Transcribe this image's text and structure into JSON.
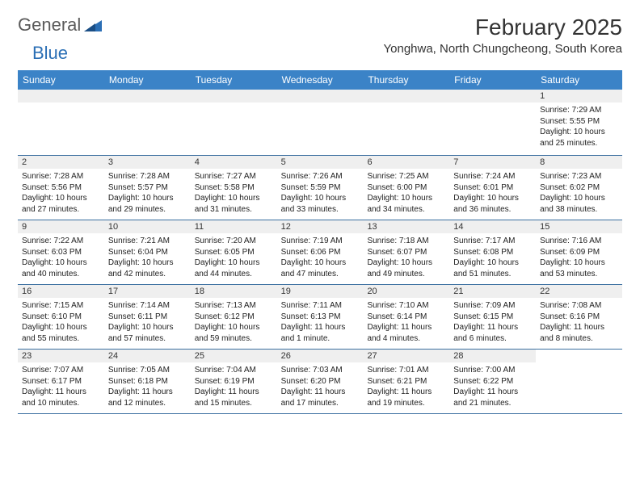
{
  "brand": {
    "name1": "General",
    "name2": "Blue"
  },
  "title": "February 2025",
  "location": "Yonghwa, North Chungcheong, South Korea",
  "colors": {
    "header_bg": "#3b83c7",
    "header_text": "#ffffff",
    "stripe_bg": "#efefef",
    "border": "#3b6fa0",
    "text": "#222222",
    "page_bg": "#ffffff"
  },
  "fonts": {
    "title_pt": 28,
    "location_pt": 15,
    "dayhead_pt": 12,
    "daynum_pt": 11,
    "detail_pt": 10
  },
  "dayNames": [
    "Sunday",
    "Monday",
    "Tuesday",
    "Wednesday",
    "Thursday",
    "Friday",
    "Saturday"
  ],
  "startOffset": 6,
  "days": [
    {
      "n": "1",
      "sunrise": "Sunrise: 7:29 AM",
      "sunset": "Sunset: 5:55 PM",
      "daylight": "Daylight: 10 hours and 25 minutes."
    },
    {
      "n": "2",
      "sunrise": "Sunrise: 7:28 AM",
      "sunset": "Sunset: 5:56 PM",
      "daylight": "Daylight: 10 hours and 27 minutes."
    },
    {
      "n": "3",
      "sunrise": "Sunrise: 7:28 AM",
      "sunset": "Sunset: 5:57 PM",
      "daylight": "Daylight: 10 hours and 29 minutes."
    },
    {
      "n": "4",
      "sunrise": "Sunrise: 7:27 AM",
      "sunset": "Sunset: 5:58 PM",
      "daylight": "Daylight: 10 hours and 31 minutes."
    },
    {
      "n": "5",
      "sunrise": "Sunrise: 7:26 AM",
      "sunset": "Sunset: 5:59 PM",
      "daylight": "Daylight: 10 hours and 33 minutes."
    },
    {
      "n": "6",
      "sunrise": "Sunrise: 7:25 AM",
      "sunset": "Sunset: 6:00 PM",
      "daylight": "Daylight: 10 hours and 34 minutes."
    },
    {
      "n": "7",
      "sunrise": "Sunrise: 7:24 AM",
      "sunset": "Sunset: 6:01 PM",
      "daylight": "Daylight: 10 hours and 36 minutes."
    },
    {
      "n": "8",
      "sunrise": "Sunrise: 7:23 AM",
      "sunset": "Sunset: 6:02 PM",
      "daylight": "Daylight: 10 hours and 38 minutes."
    },
    {
      "n": "9",
      "sunrise": "Sunrise: 7:22 AM",
      "sunset": "Sunset: 6:03 PM",
      "daylight": "Daylight: 10 hours and 40 minutes."
    },
    {
      "n": "10",
      "sunrise": "Sunrise: 7:21 AM",
      "sunset": "Sunset: 6:04 PM",
      "daylight": "Daylight: 10 hours and 42 minutes."
    },
    {
      "n": "11",
      "sunrise": "Sunrise: 7:20 AM",
      "sunset": "Sunset: 6:05 PM",
      "daylight": "Daylight: 10 hours and 44 minutes."
    },
    {
      "n": "12",
      "sunrise": "Sunrise: 7:19 AM",
      "sunset": "Sunset: 6:06 PM",
      "daylight": "Daylight: 10 hours and 47 minutes."
    },
    {
      "n": "13",
      "sunrise": "Sunrise: 7:18 AM",
      "sunset": "Sunset: 6:07 PM",
      "daylight": "Daylight: 10 hours and 49 minutes."
    },
    {
      "n": "14",
      "sunrise": "Sunrise: 7:17 AM",
      "sunset": "Sunset: 6:08 PM",
      "daylight": "Daylight: 10 hours and 51 minutes."
    },
    {
      "n": "15",
      "sunrise": "Sunrise: 7:16 AM",
      "sunset": "Sunset: 6:09 PM",
      "daylight": "Daylight: 10 hours and 53 minutes."
    },
    {
      "n": "16",
      "sunrise": "Sunrise: 7:15 AM",
      "sunset": "Sunset: 6:10 PM",
      "daylight": "Daylight: 10 hours and 55 minutes."
    },
    {
      "n": "17",
      "sunrise": "Sunrise: 7:14 AM",
      "sunset": "Sunset: 6:11 PM",
      "daylight": "Daylight: 10 hours and 57 minutes."
    },
    {
      "n": "18",
      "sunrise": "Sunrise: 7:13 AM",
      "sunset": "Sunset: 6:12 PM",
      "daylight": "Daylight: 10 hours and 59 minutes."
    },
    {
      "n": "19",
      "sunrise": "Sunrise: 7:11 AM",
      "sunset": "Sunset: 6:13 PM",
      "daylight": "Daylight: 11 hours and 1 minute."
    },
    {
      "n": "20",
      "sunrise": "Sunrise: 7:10 AM",
      "sunset": "Sunset: 6:14 PM",
      "daylight": "Daylight: 11 hours and 4 minutes."
    },
    {
      "n": "21",
      "sunrise": "Sunrise: 7:09 AM",
      "sunset": "Sunset: 6:15 PM",
      "daylight": "Daylight: 11 hours and 6 minutes."
    },
    {
      "n": "22",
      "sunrise": "Sunrise: 7:08 AM",
      "sunset": "Sunset: 6:16 PM",
      "daylight": "Daylight: 11 hours and 8 minutes."
    },
    {
      "n": "23",
      "sunrise": "Sunrise: 7:07 AM",
      "sunset": "Sunset: 6:17 PM",
      "daylight": "Daylight: 11 hours and 10 minutes."
    },
    {
      "n": "24",
      "sunrise": "Sunrise: 7:05 AM",
      "sunset": "Sunset: 6:18 PM",
      "daylight": "Daylight: 11 hours and 12 minutes."
    },
    {
      "n": "25",
      "sunrise": "Sunrise: 7:04 AM",
      "sunset": "Sunset: 6:19 PM",
      "daylight": "Daylight: 11 hours and 15 minutes."
    },
    {
      "n": "26",
      "sunrise": "Sunrise: 7:03 AM",
      "sunset": "Sunset: 6:20 PM",
      "daylight": "Daylight: 11 hours and 17 minutes."
    },
    {
      "n": "27",
      "sunrise": "Sunrise: 7:01 AM",
      "sunset": "Sunset: 6:21 PM",
      "daylight": "Daylight: 11 hours and 19 minutes."
    },
    {
      "n": "28",
      "sunrise": "Sunrise: 7:00 AM",
      "sunset": "Sunset: 6:22 PM",
      "daylight": "Daylight: 11 hours and 21 minutes."
    }
  ]
}
